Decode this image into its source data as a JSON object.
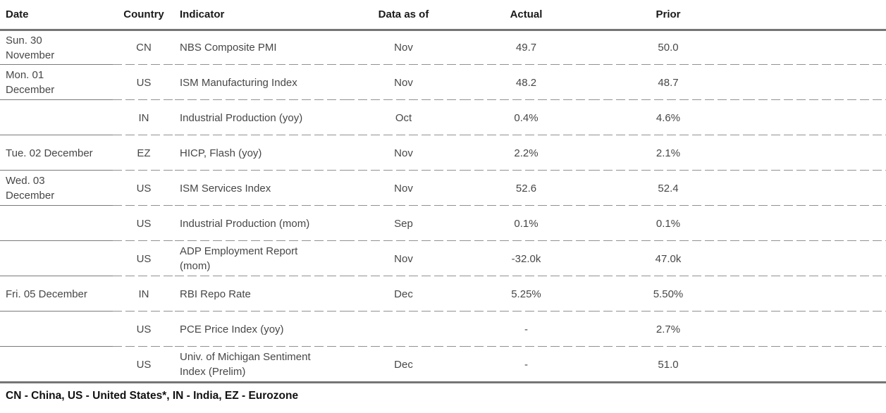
{
  "table": {
    "columns": [
      "Date",
      "Country",
      "Indicator",
      "Data as of",
      "Actual",
      "Prior"
    ],
    "rows": [
      {
        "date": "Sun. 30\nNovember",
        "country": "CN",
        "indicator": "NBS Composite PMI",
        "data_as_of": "Nov",
        "actual": "49.7",
        "prior": "50.0"
      },
      {
        "date": "Mon. 01\nDecember",
        "country": "US",
        "indicator": "ISM Manufacturing Index",
        "data_as_of": "Nov",
        "actual": "48.2",
        "prior": "48.7"
      },
      {
        "date": "",
        "country": "IN",
        "indicator": "Industrial Production (yoy)",
        "data_as_of": "Oct",
        "actual": "0.4%",
        "prior": "4.6%"
      },
      {
        "date": "Tue. 02 December",
        "country": "EZ",
        "indicator": "HICP, Flash (yoy)",
        "data_as_of": "Nov",
        "actual": "2.2%",
        "prior": "2.1%"
      },
      {
        "date": "Wed. 03\nDecember",
        "country": "US",
        "indicator": "ISM Services Index",
        "data_as_of": "Nov",
        "actual": "52.6",
        "prior": "52.4"
      },
      {
        "date": "",
        "country": "US",
        "indicator": "Industrial Production (mom)",
        "data_as_of": "Sep",
        "actual": "0.1%",
        "prior": "0.1%"
      },
      {
        "date": "",
        "country": "US",
        "indicator": "ADP Employment Report\n(mom)",
        "data_as_of": "Nov",
        "actual": "-32.0k",
        "prior": "47.0k"
      },
      {
        "date": "Fri. 05 December",
        "country": "IN",
        "indicator": "RBI Repo Rate",
        "data_as_of": "Dec",
        "actual": "5.25%",
        "prior": "5.50%"
      },
      {
        "date": "",
        "country": "US",
        "indicator": "PCE Price Index (yoy)",
        "data_as_of": "",
        "actual": "-",
        "prior": "2.7%"
      },
      {
        "date": "",
        "country": "US",
        "indicator": "Univ. of Michigan Sentiment\nIndex (Prelim)",
        "data_as_of": "Dec",
        "actual": "-",
        "prior": "51.0"
      }
    ]
  },
  "footnote": "CN - China, US - United States*, IN - India, EZ - Eurozone",
  "colors": {
    "thick_rule": "#757575",
    "solid_separator": "#7a7a7a",
    "dashed_separator": "#919191",
    "header_text": "#1a1a1a",
    "body_text": "#474747"
  }
}
